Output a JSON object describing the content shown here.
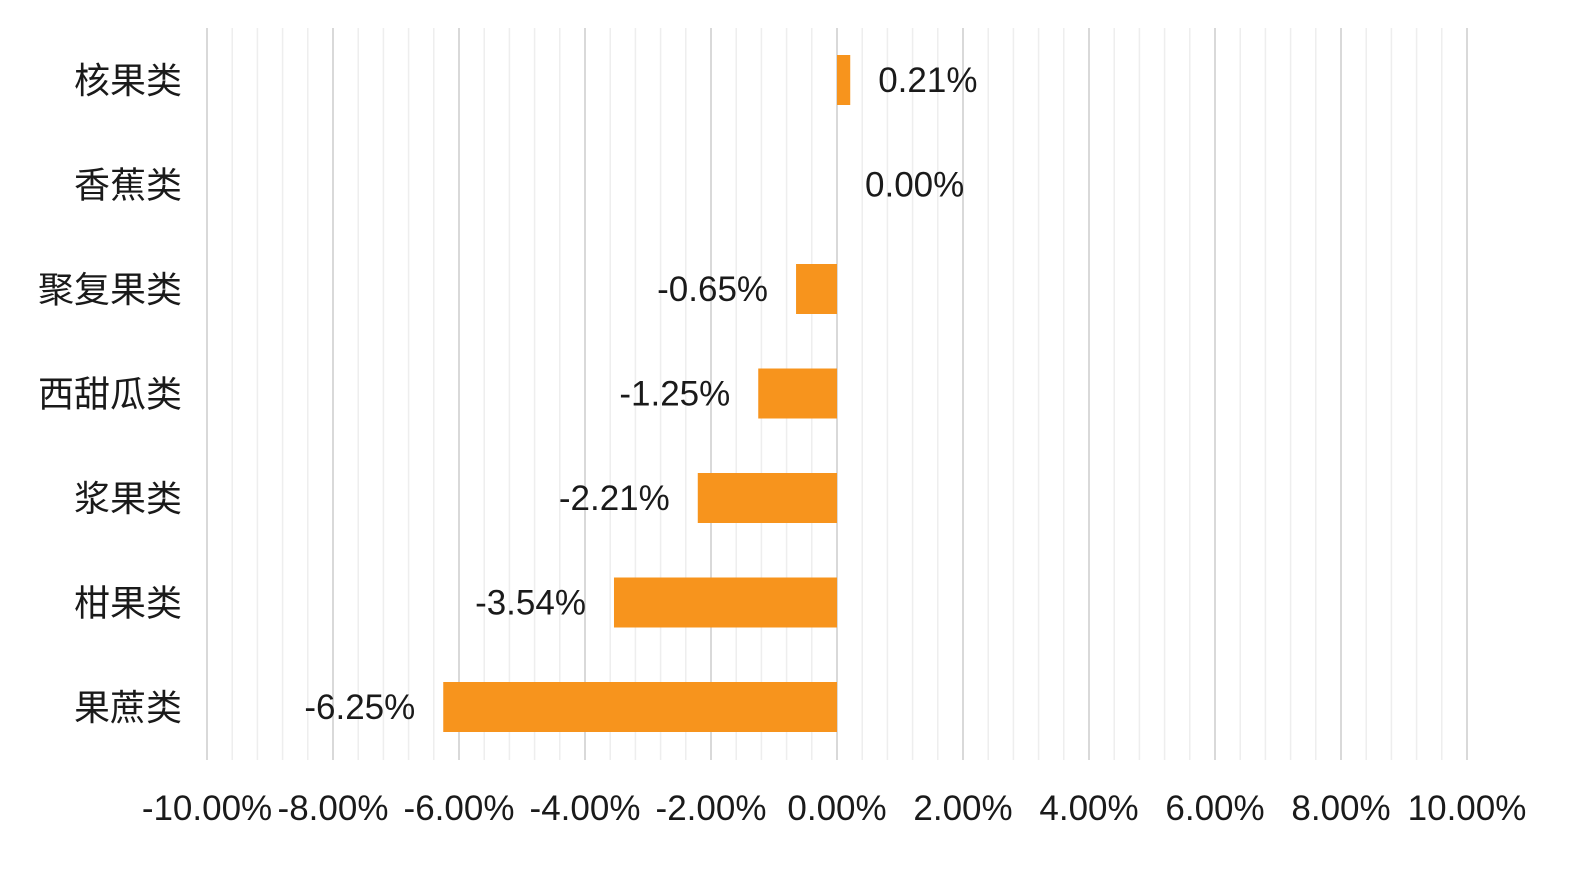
{
  "chart_data": {
    "type": "bar",
    "orientation": "horizontal",
    "categories": [
      "核果类",
      "香蕉类",
      "聚复果类",
      "西甜瓜类",
      "浆果类",
      "柑果类",
      "果蔗类"
    ],
    "values": [
      0.21,
      0.0,
      -0.65,
      -1.25,
      -2.21,
      -3.54,
      -6.25
    ],
    "data_labels": [
      "0.21%",
      "0.00%",
      "-0.65%",
      "-1.25%",
      "-2.21%",
      "-3.54%",
      "-6.25%"
    ],
    "xlim": [
      -10,
      10
    ],
    "x_ticks": [
      -10,
      -8,
      -6,
      -4,
      -2,
      0,
      2,
      4,
      6,
      8,
      10
    ],
    "x_tick_labels": [
      "-10.00%",
      "-8.00%",
      "-6.00%",
      "-4.00%",
      "-2.00%",
      "0.00%",
      "2.00%",
      "4.00%",
      "6.00%",
      "8.00%",
      "10.00%"
    ],
    "minor_grid_step": 0.4,
    "grid": true,
    "legend": "none",
    "title": "",
    "xlabel": "",
    "ylabel": "",
    "bar_color": "#F7941D",
    "major_grid_color": "#d9d9d9",
    "minor_grid_color": "#eeeeee"
  }
}
